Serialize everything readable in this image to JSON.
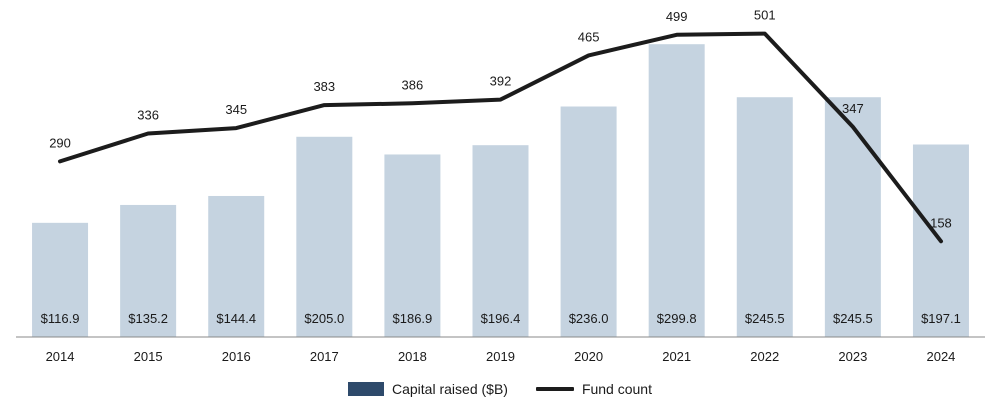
{
  "chart_data": {
    "type": "bar",
    "categories": [
      "2014",
      "2015",
      "2016",
      "2017",
      "2018",
      "2019",
      "2020",
      "2021",
      "2022",
      "2023",
      "2024"
    ],
    "series": [
      {
        "name": "Capital raised ($B)",
        "type": "bar",
        "values": [
          116.9,
          135.2,
          144.4,
          205.0,
          186.9,
          196.4,
          236.0,
          299.8,
          245.5,
          245.5,
          197.1
        ],
        "labels": [
          "$116.9",
          "$135.2",
          "$144.4",
          "$205.0",
          "$186.9",
          "$196.4",
          "$236.0",
          "$299.8",
          "$245.5",
          "$245.5",
          "$197.1"
        ],
        "color": "#c5d3e0"
      },
      {
        "name": "Fund count",
        "type": "line",
        "values": [
          290,
          336,
          345,
          383,
          386,
          392,
          465,
          499,
          501,
          347,
          158
        ],
        "labels": [
          "290",
          "336",
          "345",
          "383",
          "386",
          "392",
          "465",
          "499",
          "501",
          "347",
          "158"
        ],
        "color": "#1c1c1c"
      }
    ],
    "ylim_bars": [
      0,
      300
    ],
    "ylim_line": [
      0,
      540
    ],
    "grid": false,
    "legend_position": "bottom-center",
    "legend_swatch_bar_color": "#2e4a6b",
    "title": "",
    "xlabel": "",
    "ylabel": ""
  }
}
